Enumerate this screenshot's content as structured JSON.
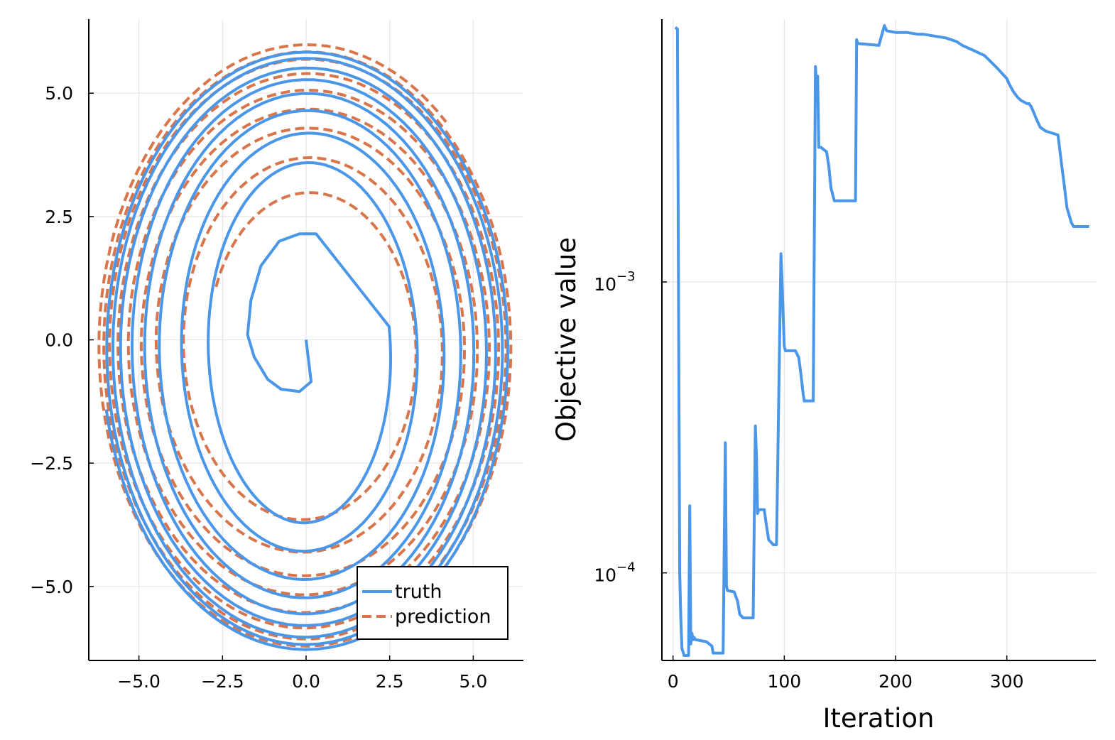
{
  "chart_data": [
    {
      "type": "line",
      "xlim": [
        -6.5,
        6.5
      ],
      "ylim": [
        -6.5,
        6.5
      ],
      "xticks": [
        -5.0,
        -2.5,
        0.0,
        2.5,
        5.0
      ],
      "yticks": [
        -5.0,
        -2.5,
        0.0,
        2.5,
        5.0
      ],
      "xtick_labels": [
        "−5.0",
        "−2.5",
        "0.0",
        "2.5",
        "5.0"
      ],
      "ytick_labels": [
        "−5.0",
        "−2.5",
        "0.0",
        "2.5",
        "5.0"
      ],
      "grid": true,
      "legend_position": "bottom-right",
      "series": [
        {
          "name": "truth",
          "color": "#4a96e8",
          "style": "solid",
          "start": [
            0.0,
            0.0
          ],
          "first_turn": [
            [
              0.0,
              0.0
            ],
            [
              0.15,
              -0.85
            ],
            [
              -0.2,
              -1.05
            ],
            [
              -0.75,
              -1.0
            ],
            [
              -1.15,
              -0.8
            ],
            [
              -1.55,
              -0.35
            ],
            [
              -1.75,
              0.1
            ],
            [
              -1.65,
              0.8
            ],
            [
              -1.35,
              1.5
            ],
            [
              -0.8,
              2.0
            ],
            [
              -0.2,
              2.15
            ],
            [
              0.3,
              2.15
            ]
          ],
          "semi_axes_x": [
            2.5,
            3.35,
            4.2,
            4.7,
            5.1,
            5.5,
            5.75,
            5.95,
            6.1
          ],
          "semi_axes_y": [
            3.35,
            3.95,
            4.6,
            5.0,
            5.35,
            5.6,
            5.85,
            6.0,
            6.1
          ],
          "center": [
            0.0,
            -0.2
          ],
          "turns": 8.5
        },
        {
          "name": "prediction",
          "color": "#d9754a",
          "style": "dashed",
          "start": [
            -2.5,
            1.1
          ],
          "semi_axes_x": [
            2.95,
            3.75,
            4.6,
            5.0,
            5.4,
            5.7,
            5.95,
            6.1,
            6.25
          ],
          "semi_axes_y": [
            3.0,
            3.75,
            4.4,
            4.8,
            5.2,
            5.55,
            5.85,
            6.0,
            6.15
          ],
          "center": [
            0.0,
            -0.15
          ],
          "turns": 8.3
        }
      ]
    },
    {
      "type": "line",
      "xlabel": "Iteration",
      "ylabel": "Objective value",
      "yscale": "log",
      "xlim": [
        -10,
        380
      ],
      "ylim": [
        5e-05,
        0.008
      ],
      "xticks": [
        0,
        100,
        200,
        300
      ],
      "xtick_labels": [
        "0",
        "100",
        "200",
        "300"
      ],
      "ytick_labels": [
        {
          "base": "10",
          "exp": "−4",
          "value": 0.0001
        },
        {
          "base": "10",
          "exp": "−3",
          "value": 0.001
        }
      ],
      "grid": true,
      "series": [
        {
          "color": "#4a96e8",
          "x": [
            2,
            4,
            5,
            6,
            7,
            8,
            10,
            14,
            15,
            16,
            17,
            18,
            19,
            20,
            30,
            35,
            36,
            45,
            47,
            48,
            49,
            55,
            58,
            60,
            63,
            72,
            74,
            75,
            76,
            77,
            82,
            84,
            86,
            90,
            93,
            97,
            98,
            100,
            101,
            110,
            113,
            115,
            117,
            118,
            126,
            128,
            129,
            130,
            131,
            133,
            138,
            140,
            142,
            145,
            164,
            165,
            166,
            185,
            190,
            192,
            200,
            210,
            220,
            225,
            235,
            245,
            250,
            255,
            260,
            268,
            280,
            290,
            300,
            302,
            306,
            310,
            313,
            318,
            320,
            322,
            327,
            330,
            335,
            346,
            350,
            352,
            354,
            356,
            358,
            360,
            364,
            368,
            374
          ],
          "y": [
            0.0075,
            0.0074,
            0.0008,
            0.0001,
            7e-05,
            5.5e-05,
            5.2e-05,
            5.2e-05,
            0.00017,
            5.7e-05,
            6.2e-05,
            5.9e-05,
            6e-05,
            5.9e-05,
            5.8e-05,
            5.6e-05,
            5.3e-05,
            5.3e-05,
            0.00028,
            9e-05,
            8.7e-05,
            8.6e-05,
            8e-05,
            7.2e-05,
            7e-05,
            7e-05,
            0.00032,
            0.00025,
            0.00016,
            0.000165,
            0.000165,
            0.000145,
            0.00013,
            0.000125,
            0.000125,
            0.00125,
            0.001,
            0.0006,
            0.00058,
            0.00058,
            0.00055,
            0.00048,
            0.00041,
            0.00039,
            0.00039,
            0.0055,
            0.0047,
            0.0051,
            0.0029,
            0.0029,
            0.0028,
            0.0025,
            0.0021,
            0.0019,
            0.0019,
            0.0068,
            0.0066,
            0.0065,
            0.0076,
            0.0073,
            0.0072,
            0.0072,
            0.0071,
            0.0071,
            0.007,
            0.0069,
            0.0068,
            0.0067,
            0.0065,
            0.0063,
            0.006,
            0.0055,
            0.005,
            0.0048,
            0.0045,
            0.0043,
            0.0042,
            0.0041,
            0.0041,
            0.004,
            0.0036,
            0.0034,
            0.0033,
            0.0032,
            0.0024,
            0.0021,
            0.0018,
            0.0017,
            0.0016,
            0.00155,
            0.00155,
            0.00155,
            0.00155
          ]
        }
      ]
    }
  ]
}
